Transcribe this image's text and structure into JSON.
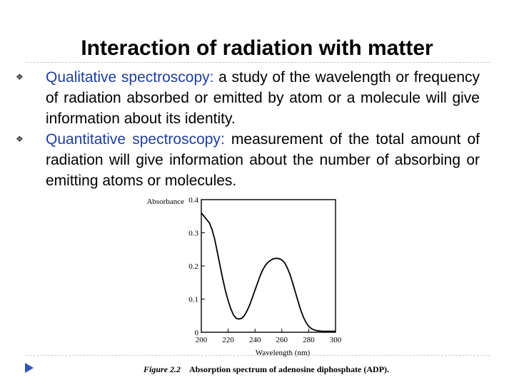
{
  "slide": {
    "title": "Interaction of radiation with matter",
    "bullets": [
      {
        "term": "Qualitative spectroscopy",
        "punct": ":",
        "text": " a study of the wavelength or frequency of radiation absorbed or emitted by atom or a molecule will give information about its identity."
      },
      {
        "term": "Quantitative spectroscopy",
        "punct": ":",
        "text": " measurement of the total amount of radiation will give information about the number of absorbing or emitting atoms or molecules."
      }
    ],
    "bullet_icon": "section-sign-bullet-icon",
    "nav_icon": "play-triangle-icon",
    "accent_color": "#1f3fa0"
  },
  "figure": {
    "caption_label": "Figure 2.2",
    "caption_text": "Absorption spectrum of adenosine diphosphate (ADP)."
  },
  "chart_data": {
    "type": "line",
    "title": "",
    "ylabel": "Absorbance",
    "xlabel": "Wavelength (nm)",
    "xlim": [
      200,
      300
    ],
    "ylim": [
      0,
      0.4
    ],
    "x_ticks": [
      "200",
      "220",
      "240",
      "260",
      "280",
      "300"
    ],
    "y_ticks": [
      "0",
      "0.1",
      "0.2",
      "0.3",
      "0.4"
    ],
    "grid": false,
    "series": [
      {
        "x": [
          200,
          202,
          204,
          206,
          208,
          210,
          212,
          214,
          216,
          218,
          220,
          222,
          224,
          226,
          228,
          230,
          232,
          234,
          236,
          238,
          240,
          242,
          244,
          246,
          248,
          250,
          252,
          254,
          256,
          258,
          260,
          262,
          264,
          266,
          268,
          270,
          272,
          274,
          276,
          278,
          280,
          282,
          284,
          286,
          288,
          290,
          292,
          294,
          296,
          298,
          300
        ],
        "y": [
          0.36,
          0.35,
          0.34,
          0.33,
          0.31,
          0.28,
          0.24,
          0.2,
          0.16,
          0.125,
          0.095,
          0.07,
          0.052,
          0.042,
          0.04,
          0.042,
          0.05,
          0.064,
          0.082,
          0.104,
          0.127,
          0.15,
          0.172,
          0.19,
          0.203,
          0.212,
          0.218,
          0.222,
          0.223,
          0.222,
          0.218,
          0.21,
          0.195,
          0.175,
          0.15,
          0.122,
          0.094,
          0.068,
          0.046,
          0.03,
          0.018,
          0.011,
          0.007,
          0.005,
          0.004,
          0.003,
          0.003,
          0.003,
          0.003,
          0.003,
          0.003
        ]
      }
    ]
  }
}
